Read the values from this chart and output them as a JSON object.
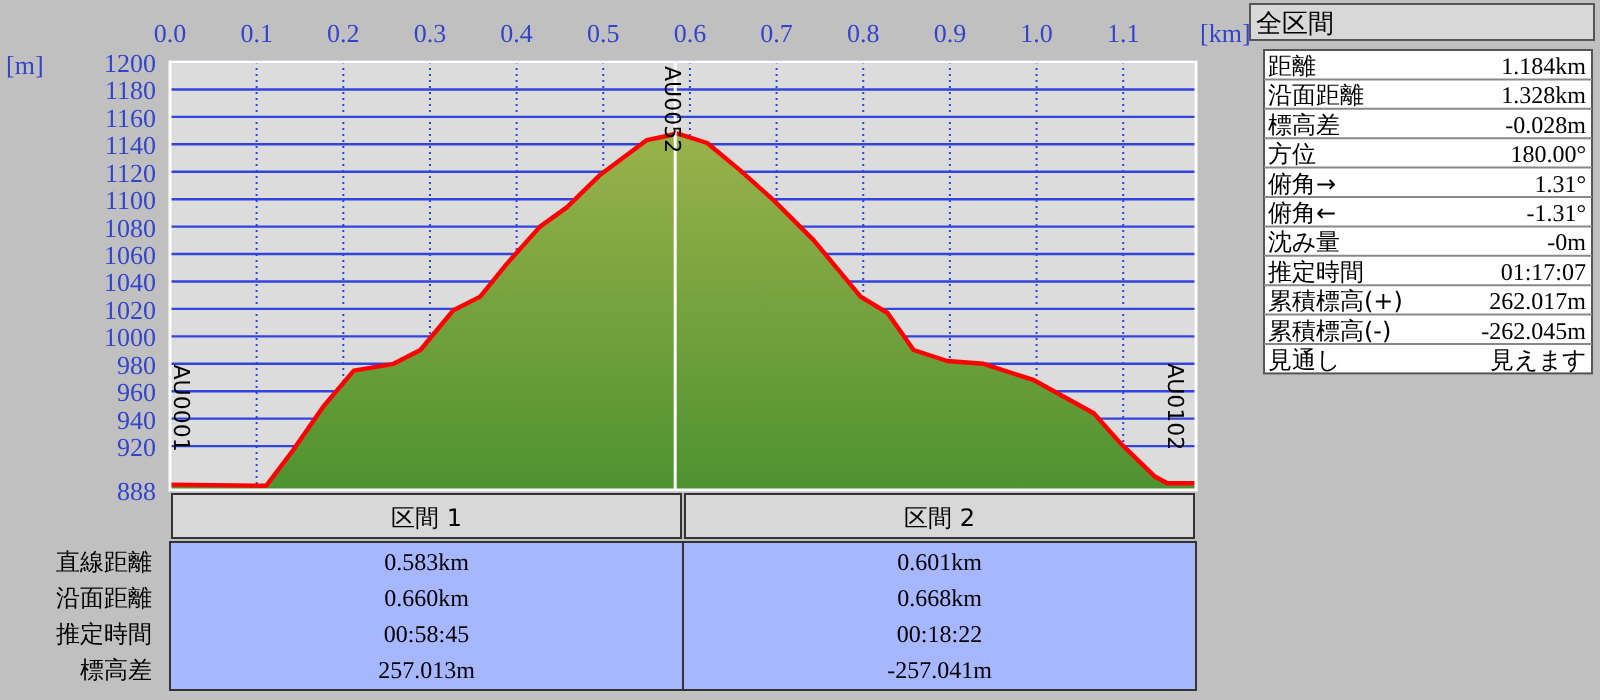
{
  "chart_data": [
    {
      "type": "area",
      "xlabel": "[km]",
      "ylabel": "[m]",
      "x": [
        0,
        0.111,
        0.142,
        0.177,
        0.212,
        0.258,
        0.289,
        0.327,
        0.358,
        0.389,
        0.427,
        0.458,
        0.497,
        0.55,
        0.573,
        0.585,
        0.62,
        0.658,
        0.697,
        0.743,
        0.797,
        0.828,
        0.858,
        0.897,
        0.939,
        0.997,
        1.066,
        1.097,
        1.136,
        1.151,
        1.184
      ],
      "series": [
        {
          "color": "#ff0000",
          "values": [
            892,
            891,
            917,
            949,
            975,
            980,
            990,
            1019,
            1029,
            1053,
            1080,
            1094,
            1118,
            1143,
            1146,
            1148,
            1141,
            1121,
            1099,
            1070,
            1029,
            1017,
            990,
            982,
            980,
            968,
            944,
            922,
            898,
            893,
            893
          ]
        }
      ],
      "xlim": [
        0,
        1.184
      ],
      "xticks": [
        {
          "value": 0,
          "label": "0.0"
        },
        0.1,
        0.2,
        0.3,
        0.4,
        0.5,
        0.6,
        0.7,
        0.8,
        0.9,
        {
          "value": 1,
          "label": "1.0"
        },
        1.1
      ],
      "ylim": [
        888,
        1200
      ],
      "yticks": [
        888,
        920,
        940,
        960,
        980,
        1000,
        1020,
        1040,
        1060,
        1080,
        1100,
        1120,
        1140,
        1160,
        1180,
        1200
      ],
      "grid": true,
      "ref_lines": [
        {
          "axis": "x",
          "value": 0.583,
          "label": "AU0052",
          "color": "#ffffff"
        }
      ],
      "annotations": [
        {
          "text": "AU0001",
          "x": 0,
          "y": 892
        },
        {
          "text": "AU0102",
          "x": 1.184,
          "y": 893
        }
      ]
    },
    {
      "type": "other",
      "title": "全区間",
      "annotations": [
        "距離",
        "1.184km",
        "沿面距離",
        "1.328km",
        "標高差",
        "-0.028m",
        "方位",
        "180.00°",
        "俯角→",
        "1.31°",
        "俯角←",
        "-1.31°",
        "沈み量",
        "-0m",
        "推定時間",
        "01:17:07",
        "累積標高(+)",
        "262.017m",
        "累積標高(-)",
        "-262.045m",
        "見通し",
        "見えます"
      ]
    },
    {
      "type": "other",
      "categories": [
        "区間 1",
        "区間 2"
      ],
      "annotations": [
        "直線距離",
        "0.583km",
        "0.601km",
        "沿面距離",
        "0.660km",
        "0.668km",
        "推定時間",
        "00:58:45",
        "00:18:22",
        "標高差",
        "257.013m",
        "-257.041m"
      ]
    }
  ]
}
